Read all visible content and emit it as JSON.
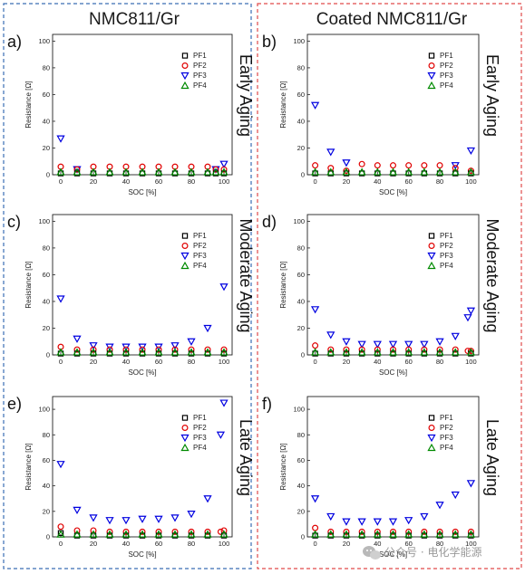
{
  "columns": [
    {
      "title": "NMC811/Gr",
      "border_color": "#3a6db5"
    },
    {
      "title": "Coated NMC811/Gr",
      "border_color": "#e04a4a"
    }
  ],
  "series_styles": [
    {
      "name": "PF1",
      "marker": "square",
      "color": "#000000"
    },
    {
      "name": "PF2",
      "marker": "circle",
      "color": "#e00000"
    },
    {
      "name": "PF3",
      "marker": "triangle-down",
      "color": "#0000e0"
    },
    {
      "name": "PF4",
      "marker": "triangle-up",
      "color": "#008a00"
    }
  ],
  "watermark": {
    "text": "公众号 · 电化学能源",
    "icon": "wechat-icon"
  },
  "chart_data": [
    {
      "type": "scatter",
      "panel": "a)",
      "label": "Early Aging",
      "xlabel": "SOC [%]",
      "ylabel": "Resistance [Ω]",
      "xlim": [
        -5,
        105
      ],
      "ylim": [
        0,
        105
      ],
      "xticks": [
        0,
        20,
        40,
        60,
        80,
        100
      ],
      "yticks": [
        0,
        20,
        40,
        60,
        80,
        100
      ],
      "legend": "top-right",
      "series": [
        {
          "name": "PF1",
          "x": [
            0,
            10,
            20,
            30,
            40,
            50,
            60,
            70,
            80,
            90,
            95,
            100
          ],
          "y": [
            1,
            1,
            1,
            1,
            1,
            1,
            1,
            1,
            1,
            1,
            1,
            1
          ]
        },
        {
          "name": "PF2",
          "x": [
            0,
            10,
            20,
            30,
            40,
            50,
            60,
            70,
            80,
            90,
            95,
            100
          ],
          "y": [
            6,
            4,
            6,
            6,
            6,
            6,
            6,
            6,
            6,
            6,
            4,
            4
          ]
        },
        {
          "name": "PF3",
          "x": [
            0,
            10,
            95,
            100
          ],
          "y": [
            27,
            4,
            4,
            8
          ]
        },
        {
          "name": "PF4",
          "x": [
            0,
            10,
            20,
            30,
            40,
            50,
            60,
            70,
            80,
            90,
            95,
            100
          ],
          "y": [
            2,
            2,
            2,
            2,
            2,
            2,
            2,
            2,
            2,
            2,
            2,
            2
          ]
        }
      ]
    },
    {
      "type": "scatter",
      "panel": "b)",
      "label": "Early Aging",
      "xlabel": "SOC [%]",
      "ylabel": "Resistance [Ω]",
      "xlim": [
        -5,
        105
      ],
      "ylim": [
        0,
        105
      ],
      "xticks": [
        0,
        20,
        40,
        60,
        80,
        100
      ],
      "yticks": [
        0,
        20,
        40,
        60,
        80,
        100
      ],
      "legend": "top-right",
      "series": [
        {
          "name": "PF1",
          "x": [
            0,
            10,
            20,
            30,
            40,
            50,
            60,
            70,
            80,
            90,
            100
          ],
          "y": [
            1,
            1,
            1,
            1,
            1,
            1,
            1,
            1,
            1,
            1,
            1
          ]
        },
        {
          "name": "PF2",
          "x": [
            0,
            10,
            20,
            30,
            40,
            50,
            60,
            70,
            80,
            90,
            100
          ],
          "y": [
            7,
            5,
            3,
            8,
            7,
            7,
            7,
            7,
            7,
            5,
            3
          ]
        },
        {
          "name": "PF3",
          "x": [
            0,
            10,
            20,
            90,
            100
          ],
          "y": [
            52,
            17,
            9,
            7,
            18
          ]
        },
        {
          "name": "PF4",
          "x": [
            0,
            10,
            20,
            30,
            40,
            50,
            60,
            70,
            80,
            90,
            100
          ],
          "y": [
            2,
            2,
            2,
            2,
            2,
            2,
            2,
            2,
            2,
            2,
            2
          ]
        }
      ]
    },
    {
      "type": "scatter",
      "panel": "c)",
      "label": "Moderate Aging",
      "xlabel": "SOC [%]",
      "ylabel": "Resistance [Ω]",
      "xlim": [
        -5,
        105
      ],
      "ylim": [
        0,
        105
      ],
      "xticks": [
        0,
        20,
        40,
        60,
        80,
        100
      ],
      "yticks": [
        0,
        20,
        40,
        60,
        80,
        100
      ],
      "legend": "top-right",
      "series": [
        {
          "name": "PF1",
          "x": [
            0,
            10,
            20,
            30,
            40,
            50,
            60,
            70,
            80,
            90,
            100
          ],
          "y": [
            1,
            1,
            1,
            1,
            1,
            1,
            1,
            1,
            1,
            1,
            1
          ]
        },
        {
          "name": "PF2",
          "x": [
            0,
            10,
            20,
            30,
            40,
            50,
            60,
            70,
            80,
            90,
            100
          ],
          "y": [
            6,
            4,
            4,
            4,
            4,
            4,
            4,
            4,
            4,
            4,
            4
          ]
        },
        {
          "name": "PF3",
          "x": [
            0,
            10,
            20,
            30,
            40,
            50,
            60,
            70,
            80,
            90,
            100
          ],
          "y": [
            42,
            12,
            7,
            6,
            6,
            6,
            6,
            7,
            10,
            20,
            51
          ]
        },
        {
          "name": "PF4",
          "x": [
            0,
            10,
            20,
            30,
            40,
            50,
            60,
            70,
            80,
            90,
            100
          ],
          "y": [
            2,
            2,
            2,
            2,
            2,
            2,
            2,
            2,
            2,
            2,
            2
          ]
        }
      ]
    },
    {
      "type": "scatter",
      "panel": "d)",
      "label": "Moderate Aging",
      "xlabel": "SOC [%]",
      "ylabel": "Resistance [Ω]",
      "xlim": [
        -5,
        105
      ],
      "ylim": [
        0,
        105
      ],
      "xticks": [
        0,
        20,
        40,
        60,
        80,
        100
      ],
      "yticks": [
        0,
        20,
        40,
        60,
        80,
        100
      ],
      "legend": "top-right",
      "series": [
        {
          "name": "PF1",
          "x": [
            0,
            10,
            20,
            30,
            40,
            50,
            60,
            70,
            80,
            90,
            100
          ],
          "y": [
            1,
            1,
            1,
            1,
            1,
            1,
            1,
            1,
            1,
            1,
            1
          ]
        },
        {
          "name": "PF2",
          "x": [
            0,
            10,
            20,
            30,
            40,
            50,
            60,
            70,
            80,
            90,
            98,
            100
          ],
          "y": [
            7,
            4,
            4,
            4,
            4,
            4,
            4,
            4,
            4,
            4,
            3,
            3
          ]
        },
        {
          "name": "PF3",
          "x": [
            0,
            10,
            20,
            30,
            40,
            50,
            60,
            70,
            80,
            90,
            98,
            100
          ],
          "y": [
            34,
            15,
            10,
            8,
            8,
            8,
            8,
            8,
            10,
            14,
            28,
            33
          ]
        },
        {
          "name": "PF4",
          "x": [
            0,
            10,
            20,
            30,
            40,
            50,
            60,
            70,
            80,
            90,
            100
          ],
          "y": [
            2,
            2,
            2,
            2,
            2,
            2,
            2,
            2,
            2,
            2,
            2
          ]
        }
      ]
    },
    {
      "type": "scatter",
      "panel": "e)",
      "label": "Late Aging",
      "xlabel": "SOC [%]",
      "ylabel": "Resistance [Ω]",
      "xlim": [
        -5,
        105
      ],
      "ylim": [
        0,
        110
      ],
      "xticks": [
        0,
        20,
        40,
        60,
        80,
        100
      ],
      "yticks": [
        0,
        20,
        40,
        60,
        80,
        100
      ],
      "legend": "top-right",
      "series": [
        {
          "name": "PF1",
          "x": [
            0,
            10,
            20,
            30,
            40,
            50,
            60,
            70,
            80,
            90,
            100
          ],
          "y": [
            3,
            1,
            1,
            1,
            1,
            1,
            1,
            1,
            1,
            1,
            1
          ]
        },
        {
          "name": "PF2",
          "x": [
            0,
            10,
            20,
            30,
            40,
            50,
            60,
            70,
            80,
            90,
            98,
            100
          ],
          "y": [
            8,
            5,
            5,
            4,
            4,
            4,
            4,
            4,
            4,
            4,
            4,
            5
          ]
        },
        {
          "name": "PF3",
          "x": [
            0,
            10,
            20,
            30,
            40,
            50,
            60,
            70,
            80,
            90,
            98,
            100
          ],
          "y": [
            57,
            21,
            15,
            13,
            13,
            14,
            14,
            15,
            18,
            30,
            80,
            105
          ]
        },
        {
          "name": "PF4",
          "x": [
            0,
            10,
            20,
            30,
            40,
            50,
            60,
            70,
            80,
            90,
            100
          ],
          "y": [
            2,
            2,
            2,
            2,
            2,
            2,
            2,
            2,
            2,
            2,
            2
          ]
        }
      ]
    },
    {
      "type": "scatter",
      "panel": "f)",
      "label": "Late Aging",
      "xlabel": "SOC [%]",
      "ylabel": "Resistance [Ω]",
      "xlim": [
        -5,
        105
      ],
      "ylim": [
        0,
        110
      ],
      "xticks": [
        0,
        20,
        40,
        60,
        80,
        100
      ],
      "yticks": [
        0,
        20,
        40,
        60,
        80,
        100
      ],
      "legend": "top-right",
      "series": [
        {
          "name": "PF1",
          "x": [
            0,
            10,
            20,
            30,
            40,
            50,
            60,
            70,
            80,
            90,
            100
          ],
          "y": [
            1,
            1,
            1,
            1,
            1,
            1,
            1,
            1,
            1,
            1,
            1
          ]
        },
        {
          "name": "PF2",
          "x": [
            0,
            10,
            20,
            30,
            40,
            50,
            60,
            70,
            80,
            90,
            100
          ],
          "y": [
            7,
            4,
            4,
            4,
            4,
            4,
            4,
            4,
            4,
            4,
            4
          ]
        },
        {
          "name": "PF3",
          "x": [
            0,
            10,
            20,
            30,
            40,
            50,
            60,
            70,
            80,
            90,
            100
          ],
          "y": [
            30,
            16,
            12,
            12,
            12,
            12,
            13,
            16,
            25,
            33,
            42
          ]
        },
        {
          "name": "PF4",
          "x": [
            0,
            10,
            20,
            30,
            40,
            50,
            60,
            70,
            80,
            90,
            100
          ],
          "y": [
            2,
            2,
            2,
            2,
            2,
            2,
            2,
            2,
            2,
            2,
            2
          ]
        }
      ]
    }
  ]
}
